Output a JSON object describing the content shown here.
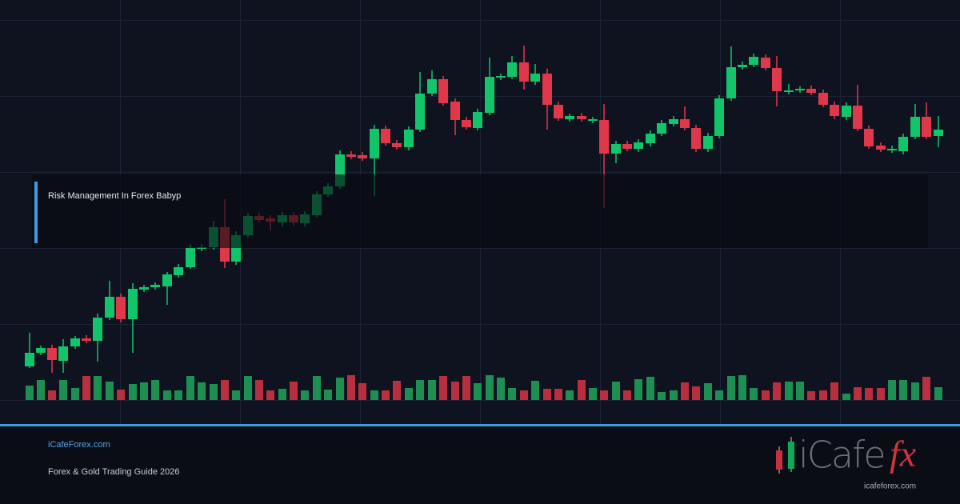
{
  "header": {
    "title": "Risk Management In Forex Babyp"
  },
  "footer": {
    "site": "iCafeForex.com",
    "tagline": "Forex & Gold Trading Guide 2026"
  },
  "logo": {
    "wordmark": "iCafe",
    "accent": "fx",
    "url": "icafeforex.com"
  }
}
